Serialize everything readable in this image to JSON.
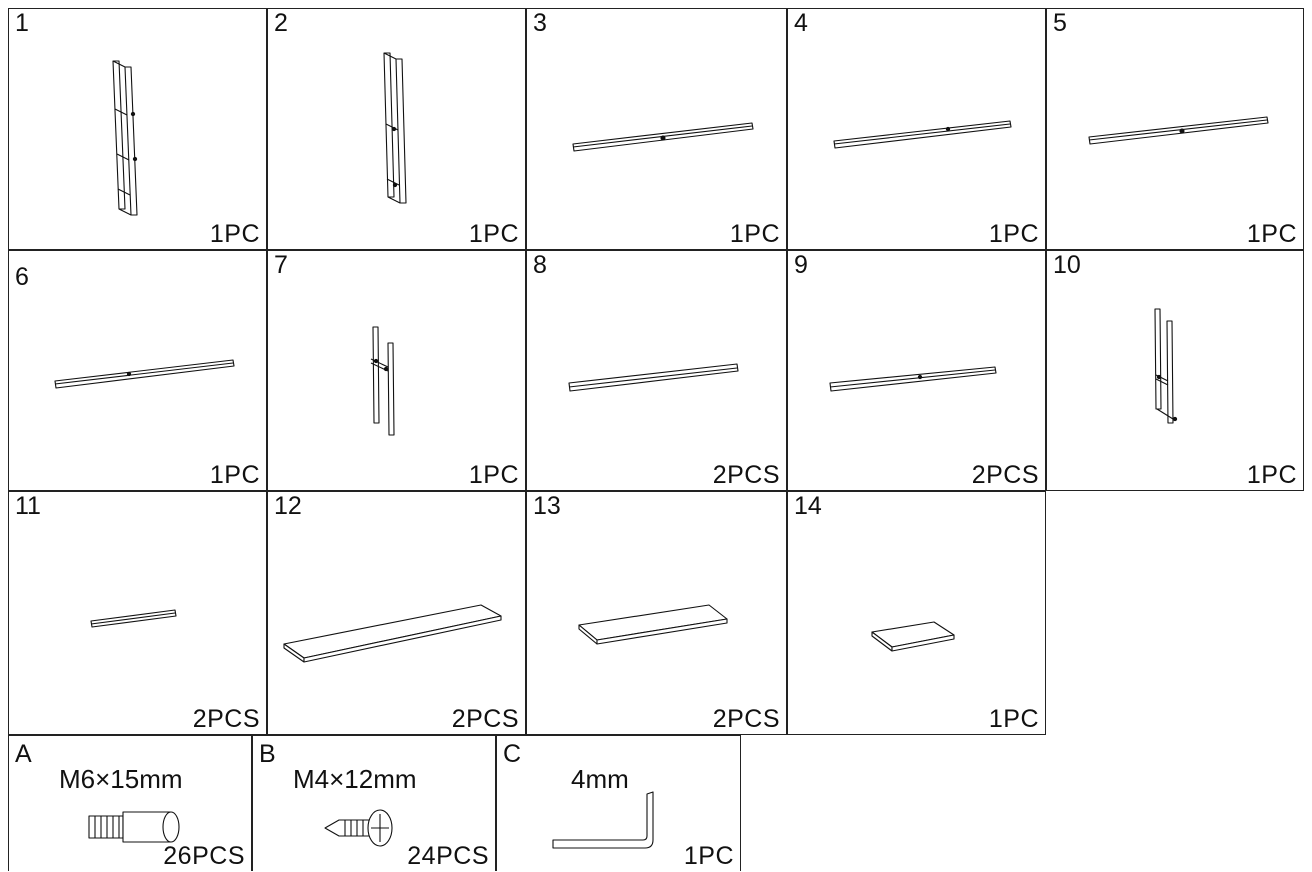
{
  "parts": [
    {
      "number": "1",
      "quantity": "1PC",
      "icon": "frame-panel-icon"
    },
    {
      "number": "2",
      "quantity": "1PC",
      "icon": "frame-panel-icon"
    },
    {
      "number": "3",
      "quantity": "1PC",
      "icon": "long-rail-icon"
    },
    {
      "number": "4",
      "quantity": "1PC",
      "icon": "long-rail-icon"
    },
    {
      "number": "5",
      "quantity": "1PC",
      "icon": "long-rail-icon"
    },
    {
      "number": "6",
      "quantity": "1PC",
      "icon": "long-rail-icon"
    },
    {
      "number": "7",
      "quantity": "1PC",
      "icon": "upright-bars-icon"
    },
    {
      "number": "8",
      "quantity": "2PCS",
      "icon": "long-rail-icon"
    },
    {
      "number": "9",
      "quantity": "2PCS",
      "icon": "long-rail-icon"
    },
    {
      "number": "10",
      "quantity": "1PC",
      "icon": "upright-frame-icon"
    },
    {
      "number": "11",
      "quantity": "2PCS",
      "icon": "short-rail-icon"
    },
    {
      "number": "12",
      "quantity": "2PCS",
      "icon": "long-shelf-board-icon"
    },
    {
      "number": "13",
      "quantity": "2PCS",
      "icon": "medium-shelf-board-icon"
    },
    {
      "number": "14",
      "quantity": "1PC",
      "icon": "small-shelf-board-icon"
    }
  ],
  "hardware": [
    {
      "letter": "A",
      "spec": "M6×15mm",
      "quantity": "26PCS",
      "icon": "bolt-icon"
    },
    {
      "letter": "B",
      "spec": "M4×12mm",
      "quantity": "24PCS",
      "icon": "screw-icon"
    },
    {
      "letter": "C",
      "spec": "4mm",
      "quantity": "1PC",
      "icon": "allen-key-icon"
    }
  ]
}
